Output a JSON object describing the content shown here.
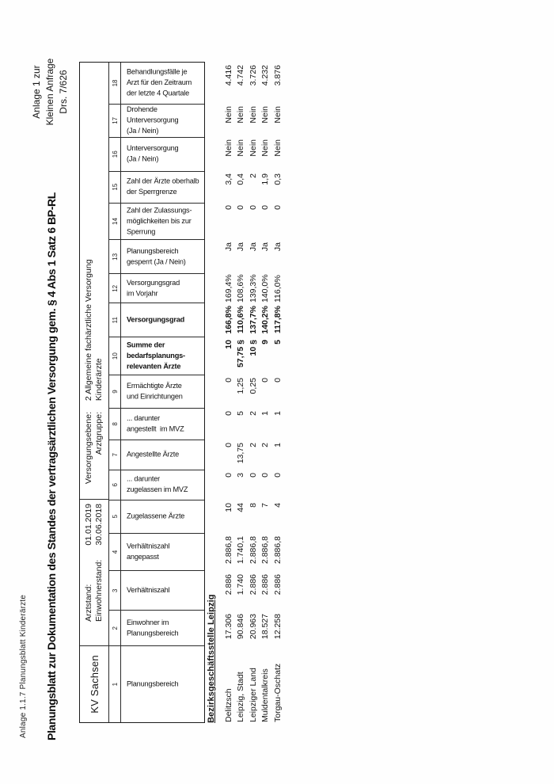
{
  "page": {
    "corner_note": "Anlage 1.1.7 Planungsblatt Kinderärzte",
    "title": "Planungsblatt zur Dokumentation des Standes der vertragsärztlichen Versorgung gem. § 4 Abs 1 Satz 6 BP-RL",
    "stamp": {
      "lines": [
        "Anlage 1 zur",
        "Kleinen Anfrage",
        "Drs. 7/626"
      ]
    }
  },
  "header": {
    "kv": "KV Sachsen",
    "arztstand_label": "Arztstand:",
    "arztstand_value": "01.01.2019",
    "einwohnerstand_label": "Einwohnerstand:",
    "einwohnerstand_value": "30.06.2018",
    "versorgungsebene_label": "Versorgungsebene:",
    "versorgungsebene_value": "2  Allgemeine fachärztliche Versorgung",
    "arztgruppe_label": "Arztgruppe:",
    "arztgruppe_value": "Kinderärzte"
  },
  "table": {
    "columns": [
      {
        "nr": "1",
        "header": "Planungsbereich",
        "bold": false
      },
      {
        "nr": "2",
        "header": "Einwohner im\nPlanungsbereich",
        "bold": false
      },
      {
        "nr": "3",
        "header": "Verhältniszahl",
        "bold": false
      },
      {
        "nr": "4",
        "header": "Verhältniszahl\nangepasst",
        "bold": false
      },
      {
        "nr": "5",
        "header": "Zugelassene Ärzte",
        "bold": false
      },
      {
        "nr": "6",
        "header": "... darunter\nzugelassen im MVZ",
        "bold": false
      },
      {
        "nr": "7",
        "header": "Angestellte Ärzte",
        "bold": false
      },
      {
        "nr": "8",
        "header": "... darunter\nangestellt  im MVZ",
        "bold": false
      },
      {
        "nr": "9",
        "header": "Ermächtigte Ärzte\nund Einrichtungen",
        "bold": false
      },
      {
        "nr": "10",
        "header": "Summe der\nbedarfsplanungs-\nrelevanten Ärzte",
        "bold": true
      },
      {
        "nr": "11",
        "header": "Versorgungsgrad",
        "bold": true
      },
      {
        "nr": "12",
        "header": "Versorgungsgrad\nim Vorjahr",
        "bold": false
      },
      {
        "nr": "13",
        "header": "Planungsbereich\ngesperrt (Ja / Nein)",
        "bold": false
      },
      {
        "nr": "14",
        "header": "Zahl der Zulassungs-\nmöglichkeiten bis zur\nSperrung",
        "bold": false
      },
      {
        "nr": "15",
        "header": "Zahl der Ärzte oberhalb\nder Sperrgrenze",
        "bold": false
      },
      {
        "nr": "16",
        "header": "Unterversorgung\n(Ja / Nein)",
        "bold": false
      },
      {
        "nr": "17",
        "header": "Drohende\nUnterversorgung\n(Ja / Nein)",
        "bold": false
      },
      {
        "nr": "18",
        "header": "Behandlungsfälle je\nArzt für den Zeitraum\nder letzte 4 Quartale",
        "bold": false
      }
    ],
    "group_label": "Bezirksgeschäftsstelle Leipzig",
    "rows": [
      {
        "name": "Delitzsch",
        "values": [
          "17.306",
          "2.886",
          "2.886,8",
          "10",
          "0",
          "0",
          "0",
          "0",
          "10",
          "166,8%",
          "169,4%",
          "Ja",
          "0",
          "3,4",
          "Nein",
          "Nein",
          "4.416"
        ]
      },
      {
        "name": "Leipzig, Stadt",
        "values": [
          "90.846",
          "1.740",
          "1.740,1",
          "44",
          "3",
          "13,75",
          "5",
          "1,25",
          "57,75 §",
          "110,6%",
          "108,6%",
          "Ja",
          "0",
          "0,4",
          "Nein",
          "Nein",
          "4.742"
        ]
      },
      {
        "name": "Leipziger Land",
        "values": [
          "20.963",
          "2.886",
          "2.886,8",
          "8",
          "0",
          "2",
          "2",
          "0,25",
          "10 §",
          "137,7%",
          "139,3%",
          "Ja",
          "0",
          "2",
          "Nein",
          "Nein",
          "3.726"
        ]
      },
      {
        "name": "Muldentalkreis",
        "values": [
          "18.527",
          "2.886",
          "2.886,8",
          "7",
          "0",
          "2",
          "1",
          "0",
          "9",
          "140,2%",
          "140,0%",
          "Ja",
          "0",
          "1,9",
          "Nein",
          "Nein",
          "4.232"
        ]
      },
      {
        "name": "Torgau-Oschatz",
        "values": [
          "12.258",
          "2.886",
          "2.886,8",
          "4",
          "0",
          "1",
          "1",
          "0",
          "5",
          "117,8%",
          "116,0%",
          "Ja",
          "0",
          "0,3",
          "Nein",
          "Nein",
          "3.876"
        ]
      }
    ]
  }
}
